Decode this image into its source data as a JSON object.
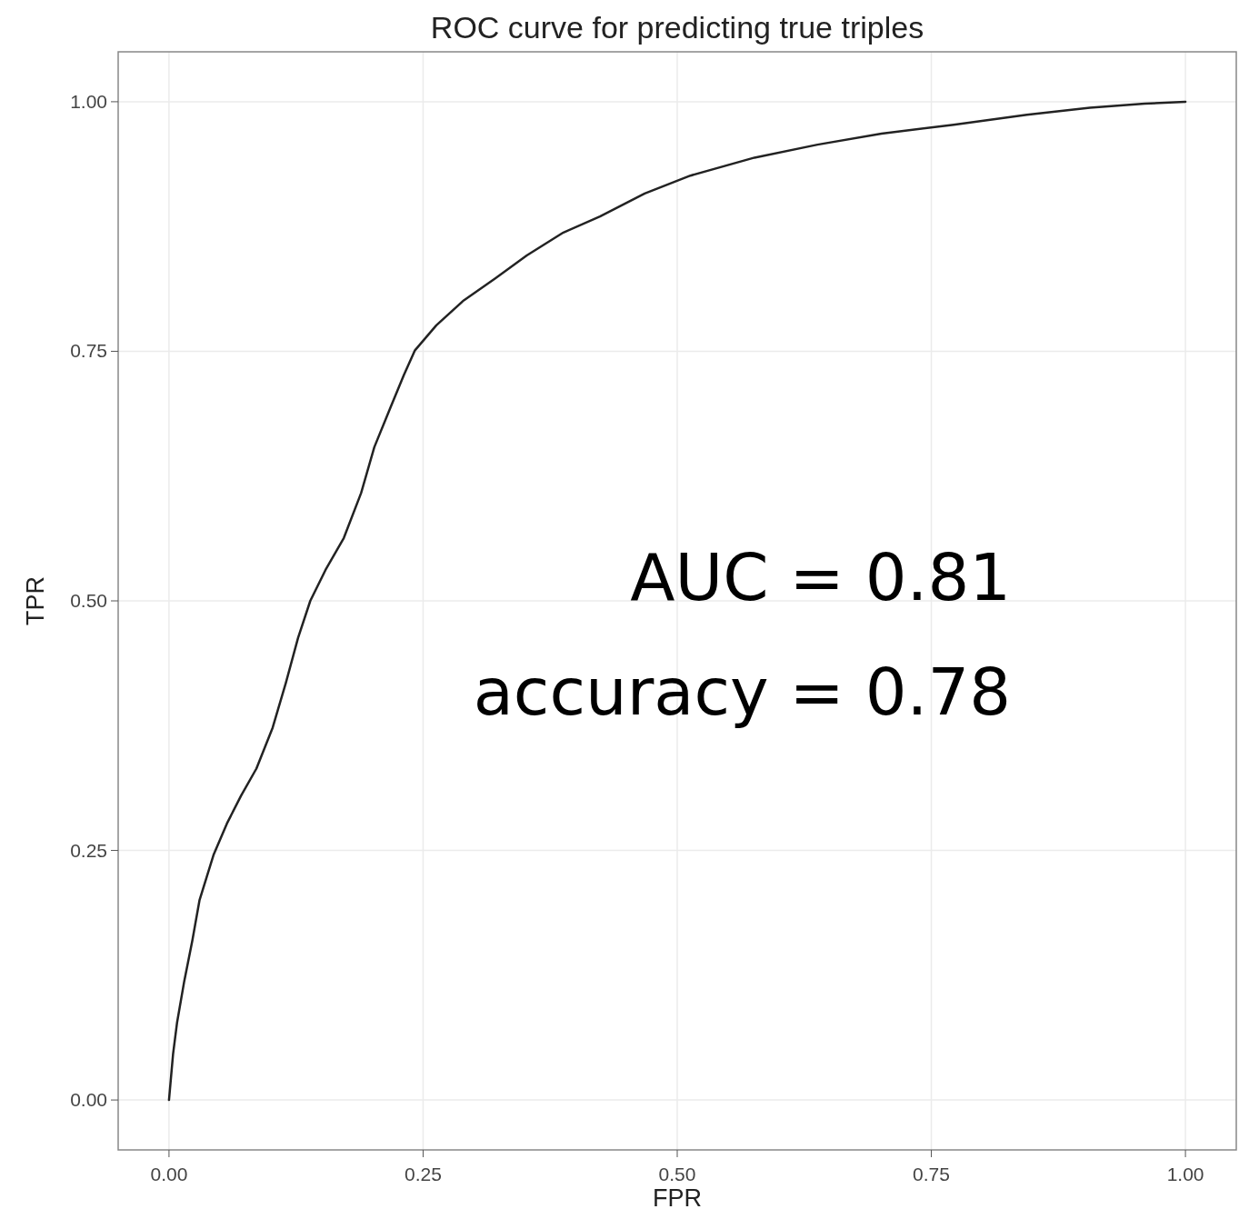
{
  "chart_data": {
    "type": "line",
    "title": "ROC curve for predicting true triples",
    "xlabel": "FPR",
    "ylabel": "TPR",
    "xlim": [
      -0.05,
      1.05
    ],
    "ylim": [
      -0.05,
      1.05
    ],
    "xticks": [
      {
        "value": 0,
        "label": "0.00"
      },
      {
        "value": 0.25,
        "label": "0.25"
      },
      {
        "value": 0.5,
        "label": "0.50"
      },
      {
        "value": 0.75,
        "label": "0.75"
      },
      {
        "value": 1,
        "label": "1.00"
      }
    ],
    "yticks": [
      {
        "value": 0,
        "label": "0.00"
      },
      {
        "value": 0.25,
        "label": "0.25"
      },
      {
        "value": 0.5,
        "label": "0.50"
      },
      {
        "value": 0.75,
        "label": "0.75"
      },
      {
        "value": 1,
        "label": "1.00"
      }
    ],
    "grid": true,
    "series": [
      {
        "color": "#222222",
        "x": [
          0,
          0.004,
          0.008,
          0.015,
          0.023,
          0.03,
          0.044,
          0.057,
          0.071,
          0.086,
          0.102,
          0.115,
          0.127,
          0.139,
          0.154,
          0.172,
          0.189,
          0.202,
          0.218,
          0.231,
          0.242,
          0.263,
          0.29,
          0.321,
          0.352,
          0.388,
          0.424,
          0.468,
          0.513,
          0.576,
          0.638,
          0.701,
          0.772,
          0.844,
          0.906,
          0.96,
          1
        ],
        "values": [
          0,
          0.046,
          0.078,
          0.119,
          0.16,
          0.2,
          0.246,
          0.277,
          0.305,
          0.332,
          0.373,
          0.418,
          0.463,
          0.5,
          0.531,
          0.563,
          0.608,
          0.654,
          0.694,
          0.726,
          0.751,
          0.776,
          0.801,
          0.823,
          0.846,
          0.869,
          0.885,
          0.908,
          0.926,
          0.944,
          0.957,
          0.968,
          0.977,
          0.987,
          0.994,
          0.998,
          1
        ]
      }
    ],
    "annotations": [
      "AUC = 0.81",
      "accuracy = 0.78"
    ]
  }
}
